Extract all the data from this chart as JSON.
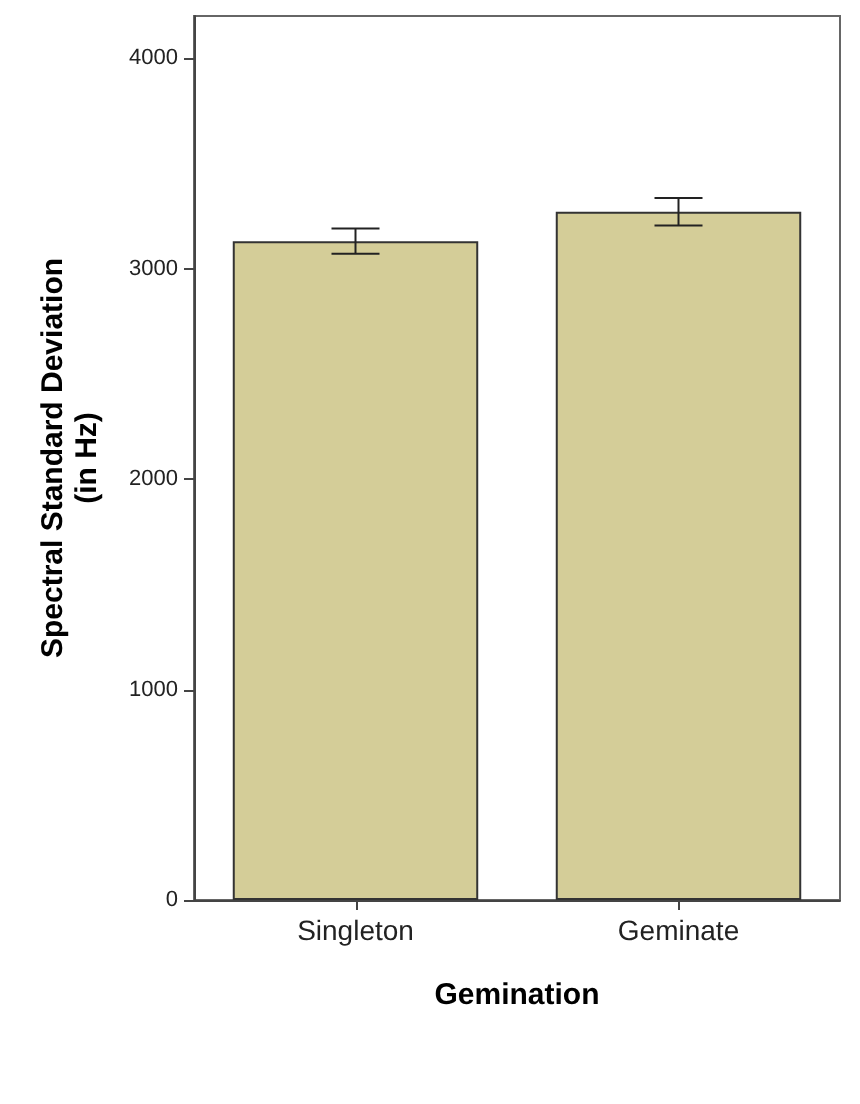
{
  "chart_data": {
    "type": "bar",
    "categories": [
      "Singleton",
      "Geminate"
    ],
    "values": [
      3130,
      3270
    ],
    "errors": [
      60,
      65
    ],
    "color": "#d4cd98",
    "xlabel": "Gemination",
    "ylabel": "Spectral Standard Deviation\n(in Hz)",
    "ylim": [
      0,
      4200
    ],
    "yticks": [
      0,
      1000,
      2000,
      3000,
      4000
    ],
    "grid": false
  }
}
